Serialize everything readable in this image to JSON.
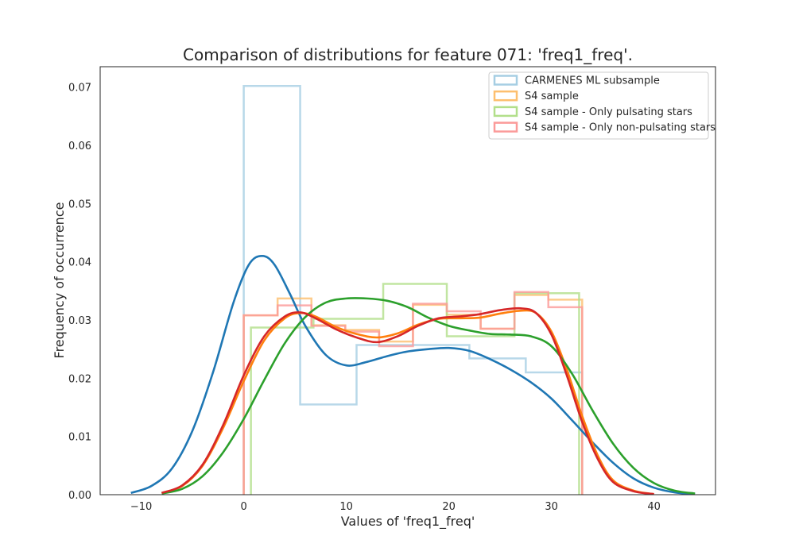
{
  "chart_data": {
    "type": "histogram+kde",
    "title": "Comparison of distributions for feature 071: 'freq1_freq'.",
    "xlabel": "Values of 'freq1_freq'",
    "ylabel": "Frequency of occurrence",
    "xlim": [
      -14,
      46
    ],
    "ylim": [
      0,
      0.0735
    ],
    "xticks": [
      -10,
      0,
      10,
      20,
      30,
      40
    ],
    "yticks": [
      0.0,
      0.01,
      0.02,
      0.03,
      0.04,
      0.05,
      0.06,
      0.07
    ],
    "xtick_labels": [
      "−10",
      "0",
      "10",
      "20",
      "30",
      "40"
    ],
    "ytick_labels": [
      "0.00",
      "0.01",
      "0.02",
      "0.03",
      "0.04",
      "0.05",
      "0.06",
      "0.07"
    ],
    "grid": false,
    "legend_position": "top-right",
    "series": [
      {
        "name": "CARMENES ML subsample",
        "color": "#1f77b4",
        "hist_color": "#a6cee3",
        "hist_edges": [
          0,
          5.5,
          11,
          16.5,
          22,
          27.5,
          33
        ],
        "hist_values": [
          0.0702,
          0.0155,
          0.0257,
          0.0257,
          0.0234,
          0.021
        ],
        "kde": [
          [
            -11,
            0.0003
          ],
          [
            -9,
            0.0015
          ],
          [
            -7,
            0.0045
          ],
          [
            -5,
            0.011
          ],
          [
            -3,
            0.021
          ],
          [
            -1,
            0.033
          ],
          [
            0.5,
            0.0395
          ],
          [
            1.8,
            0.041
          ],
          [
            3,
            0.0395
          ],
          [
            4.5,
            0.0345
          ],
          [
            6,
            0.029
          ],
          [
            8,
            0.024
          ],
          [
            10,
            0.0222
          ],
          [
            12,
            0.0228
          ],
          [
            14,
            0.0238
          ],
          [
            16,
            0.0246
          ],
          [
            18,
            0.025
          ],
          [
            20,
            0.0252
          ],
          [
            22,
            0.0247
          ],
          [
            24,
            0.0233
          ],
          [
            26,
            0.0215
          ],
          [
            28,
            0.0193
          ],
          [
            30,
            0.0165
          ],
          [
            32,
            0.0128
          ],
          [
            34,
            0.009
          ],
          [
            36,
            0.0055
          ],
          [
            38,
            0.0028
          ],
          [
            40,
            0.0012
          ],
          [
            42,
            0.0004
          ],
          [
            44,
            0.0001
          ]
        ]
      },
      {
        "name": "S4 sample",
        "color": "#ff7f0e",
        "hist_color": "#fdbf6f",
        "hist_edges": [
          0,
          3.3,
          6.6,
          9.9,
          13.2,
          16.5,
          19.8,
          23.1,
          26.4,
          29.7,
          33
        ],
        "hist_values": [
          0.0308,
          0.0337,
          0.0291,
          0.0283,
          0.0263,
          0.0326,
          0.0309,
          0.0285,
          0.0343,
          0.0335
        ],
        "kde": [
          [
            -8,
            0.0003
          ],
          [
            -6,
            0.0015
          ],
          [
            -4,
            0.005
          ],
          [
            -2,
            0.0115
          ],
          [
            0,
            0.0195
          ],
          [
            2,
            0.0265
          ],
          [
            4,
            0.0303
          ],
          [
            5.5,
            0.0312
          ],
          [
            7,
            0.0306
          ],
          [
            9,
            0.0288
          ],
          [
            11,
            0.0276
          ],
          [
            13,
            0.027
          ],
          [
            15,
            0.0277
          ],
          [
            17,
            0.0292
          ],
          [
            19,
            0.0302
          ],
          [
            21,
            0.0303
          ],
          [
            23,
            0.0304
          ],
          [
            25,
            0.0311
          ],
          [
            27,
            0.0316
          ],
          [
            28.5,
            0.0312
          ],
          [
            30,
            0.028
          ],
          [
            31.5,
            0.0215
          ],
          [
            33,
            0.0135
          ],
          [
            34.5,
            0.0068
          ],
          [
            36,
            0.0025
          ],
          [
            38,
            0.0007
          ],
          [
            40,
            0.0001
          ]
        ]
      },
      {
        "name": "S4 sample - Only pulsating stars",
        "color": "#2ca02c",
        "hist_color": "#b2df8a",
        "hist_edges": [
          0.7,
          6.8,
          13.6,
          19.8,
          26.4,
          32.7
        ],
        "hist_values": [
          0.0287,
          0.0302,
          0.0362,
          0.0272,
          0.0346
        ],
        "kde": [
          [
            -8,
            0.0002
          ],
          [
            -6,
            0.001
          ],
          [
            -4,
            0.0032
          ],
          [
            -2,
            0.0073
          ],
          [
            0,
            0.013
          ],
          [
            2,
            0.0197
          ],
          [
            4,
            0.026
          ],
          [
            6,
            0.0305
          ],
          [
            8,
            0.033
          ],
          [
            10,
            0.0337
          ],
          [
            12,
            0.0337
          ],
          [
            14,
            0.0333
          ],
          [
            16,
            0.0322
          ],
          [
            18,
            0.0304
          ],
          [
            20,
            0.029
          ],
          [
            22,
            0.0282
          ],
          [
            24,
            0.0276
          ],
          [
            26,
            0.0275
          ],
          [
            28,
            0.0272
          ],
          [
            30,
            0.0255
          ],
          [
            32,
            0.0208
          ],
          [
            34,
            0.0145
          ],
          [
            36,
            0.0088
          ],
          [
            38,
            0.0046
          ],
          [
            40,
            0.002
          ],
          [
            42,
            0.0007
          ],
          [
            44,
            0.0002
          ]
        ]
      },
      {
        "name": "S4 sample - Only non-pulsating stars",
        "color": "#d62728",
        "hist_color": "#fb9a99",
        "hist_edges": [
          0,
          3.3,
          6.6,
          9.9,
          13.2,
          16.5,
          19.8,
          23.1,
          26.4,
          29.7,
          33
        ],
        "hist_values": [
          0.0308,
          0.0325,
          0.029,
          0.028,
          0.0255,
          0.0328,
          0.0315,
          0.0285,
          0.0348,
          0.0322
        ],
        "kde": [
          [
            -8,
            0.0003
          ],
          [
            -6,
            0.0016
          ],
          [
            -4,
            0.0052
          ],
          [
            -2,
            0.012
          ],
          [
            0,
            0.0205
          ],
          [
            2,
            0.0272
          ],
          [
            4,
            0.0306
          ],
          [
            5.5,
            0.0313
          ],
          [
            7,
            0.0303
          ],
          [
            9,
            0.0284
          ],
          [
            11,
            0.027
          ],
          [
            13,
            0.0262
          ],
          [
            15,
            0.0272
          ],
          [
            17,
            0.029
          ],
          [
            19,
            0.0303
          ],
          [
            21,
            0.0306
          ],
          [
            23,
            0.031
          ],
          [
            25,
            0.0317
          ],
          [
            27,
            0.032
          ],
          [
            28.5,
            0.0312
          ],
          [
            30,
            0.0275
          ],
          [
            31.5,
            0.0205
          ],
          [
            33,
            0.0125
          ],
          [
            34.5,
            0.0062
          ],
          [
            36,
            0.0022
          ],
          [
            38,
            0.0006
          ],
          [
            40,
            0.0001
          ]
        ]
      }
    ]
  }
}
